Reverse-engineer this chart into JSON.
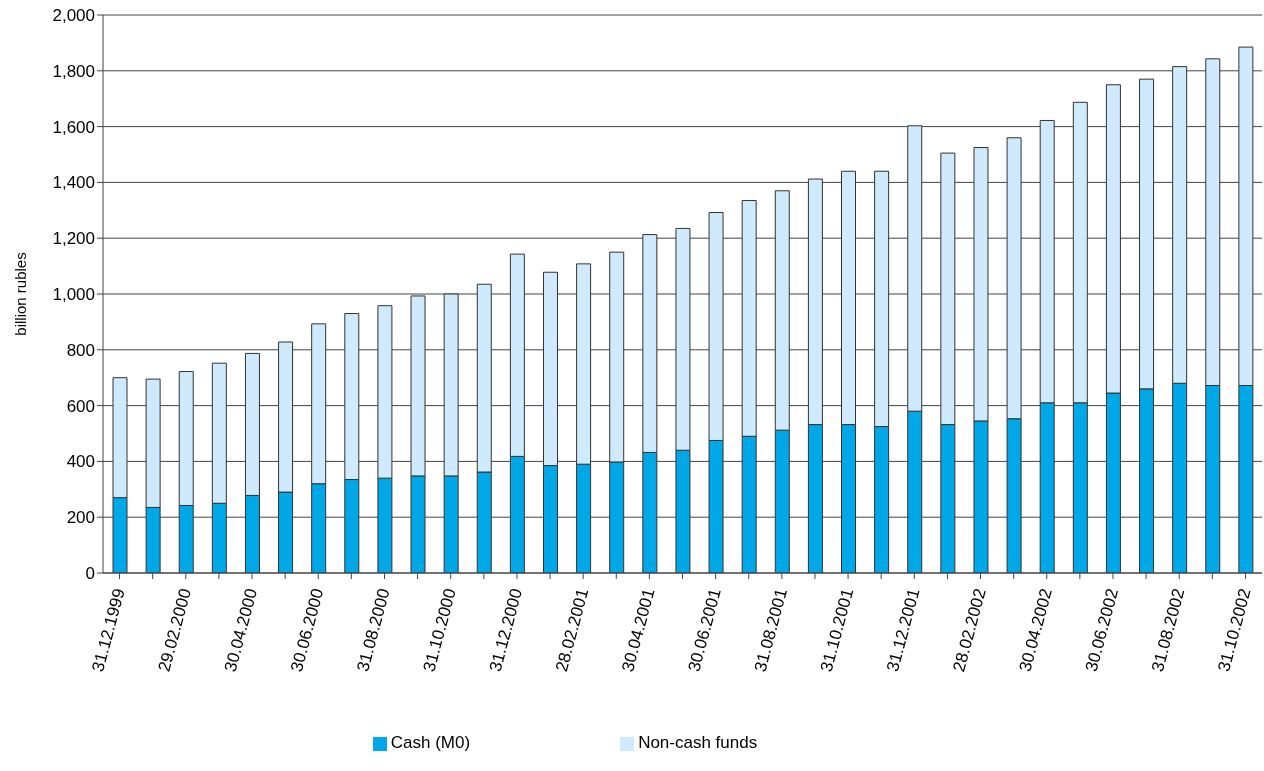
{
  "chart_data": {
    "type": "bar",
    "stacked": true,
    "ylabel": "billion rubles",
    "categories": [
      "31.12.1999",
      null,
      "29.02.2000",
      null,
      "30.04.2000",
      null,
      "30.06.2000",
      null,
      "31.08.2000",
      null,
      "31.10.2000",
      null,
      "31.12.2000",
      null,
      "28.02.2001",
      null,
      "30.04.2001",
      null,
      "30.06.2001",
      null,
      "31.08.2001",
      null,
      "31.10.2001",
      null,
      "31.12.2001",
      null,
      "28.02.2002",
      null,
      "30.04.2002",
      null,
      "30.06.2002",
      null,
      "31.08.2002",
      null,
      "31.10.2002"
    ],
    "series": [
      {
        "name": "Cash (M0)",
        "color": "#00a8e8",
        "values": [
          270,
          235,
          242,
          250,
          278,
          290,
          320,
          335,
          340,
          348,
          348,
          362,
          418,
          385,
          390,
          398,
          432,
          440,
          475,
          490,
          512,
          532,
          532,
          525,
          580,
          532,
          545,
          553,
          610,
          610,
          645,
          660,
          680,
          672,
          672
        ]
      },
      {
        "name": "Non-cash funds",
        "color": "#cfeafc",
        "values": [
          430,
          460,
          480,
          502,
          509,
          538,
          573,
          595,
          618,
          645,
          652,
          673,
          725,
          693,
          718,
          752,
          781,
          795,
          817,
          845,
          858,
          880,
          908,
          915,
          1023,
          973,
          980,
          1007,
          1012,
          1077,
          1105,
          1110,
          1135,
          1171,
          1213
        ]
      }
    ],
    "ylim": [
      0,
      2000
    ],
    "yticks": [
      {
        "value": 0,
        "label": "0"
      },
      {
        "value": 200,
        "label": "200"
      },
      {
        "value": 400,
        "label": "400"
      },
      {
        "value": 600,
        "label": "600"
      },
      {
        "value": 800,
        "label": "800"
      },
      {
        "value": 1000,
        "label": "1,000"
      },
      {
        "value": 1200,
        "label": "1,200"
      },
      {
        "value": 1400,
        "label": "1,400"
      },
      {
        "value": 1600,
        "label": "1,600"
      },
      {
        "value": 1800,
        "label": "1,800"
      },
      {
        "value": 2000,
        "label": "2,000"
      }
    ],
    "grid": "y",
    "legend": "bottom"
  }
}
